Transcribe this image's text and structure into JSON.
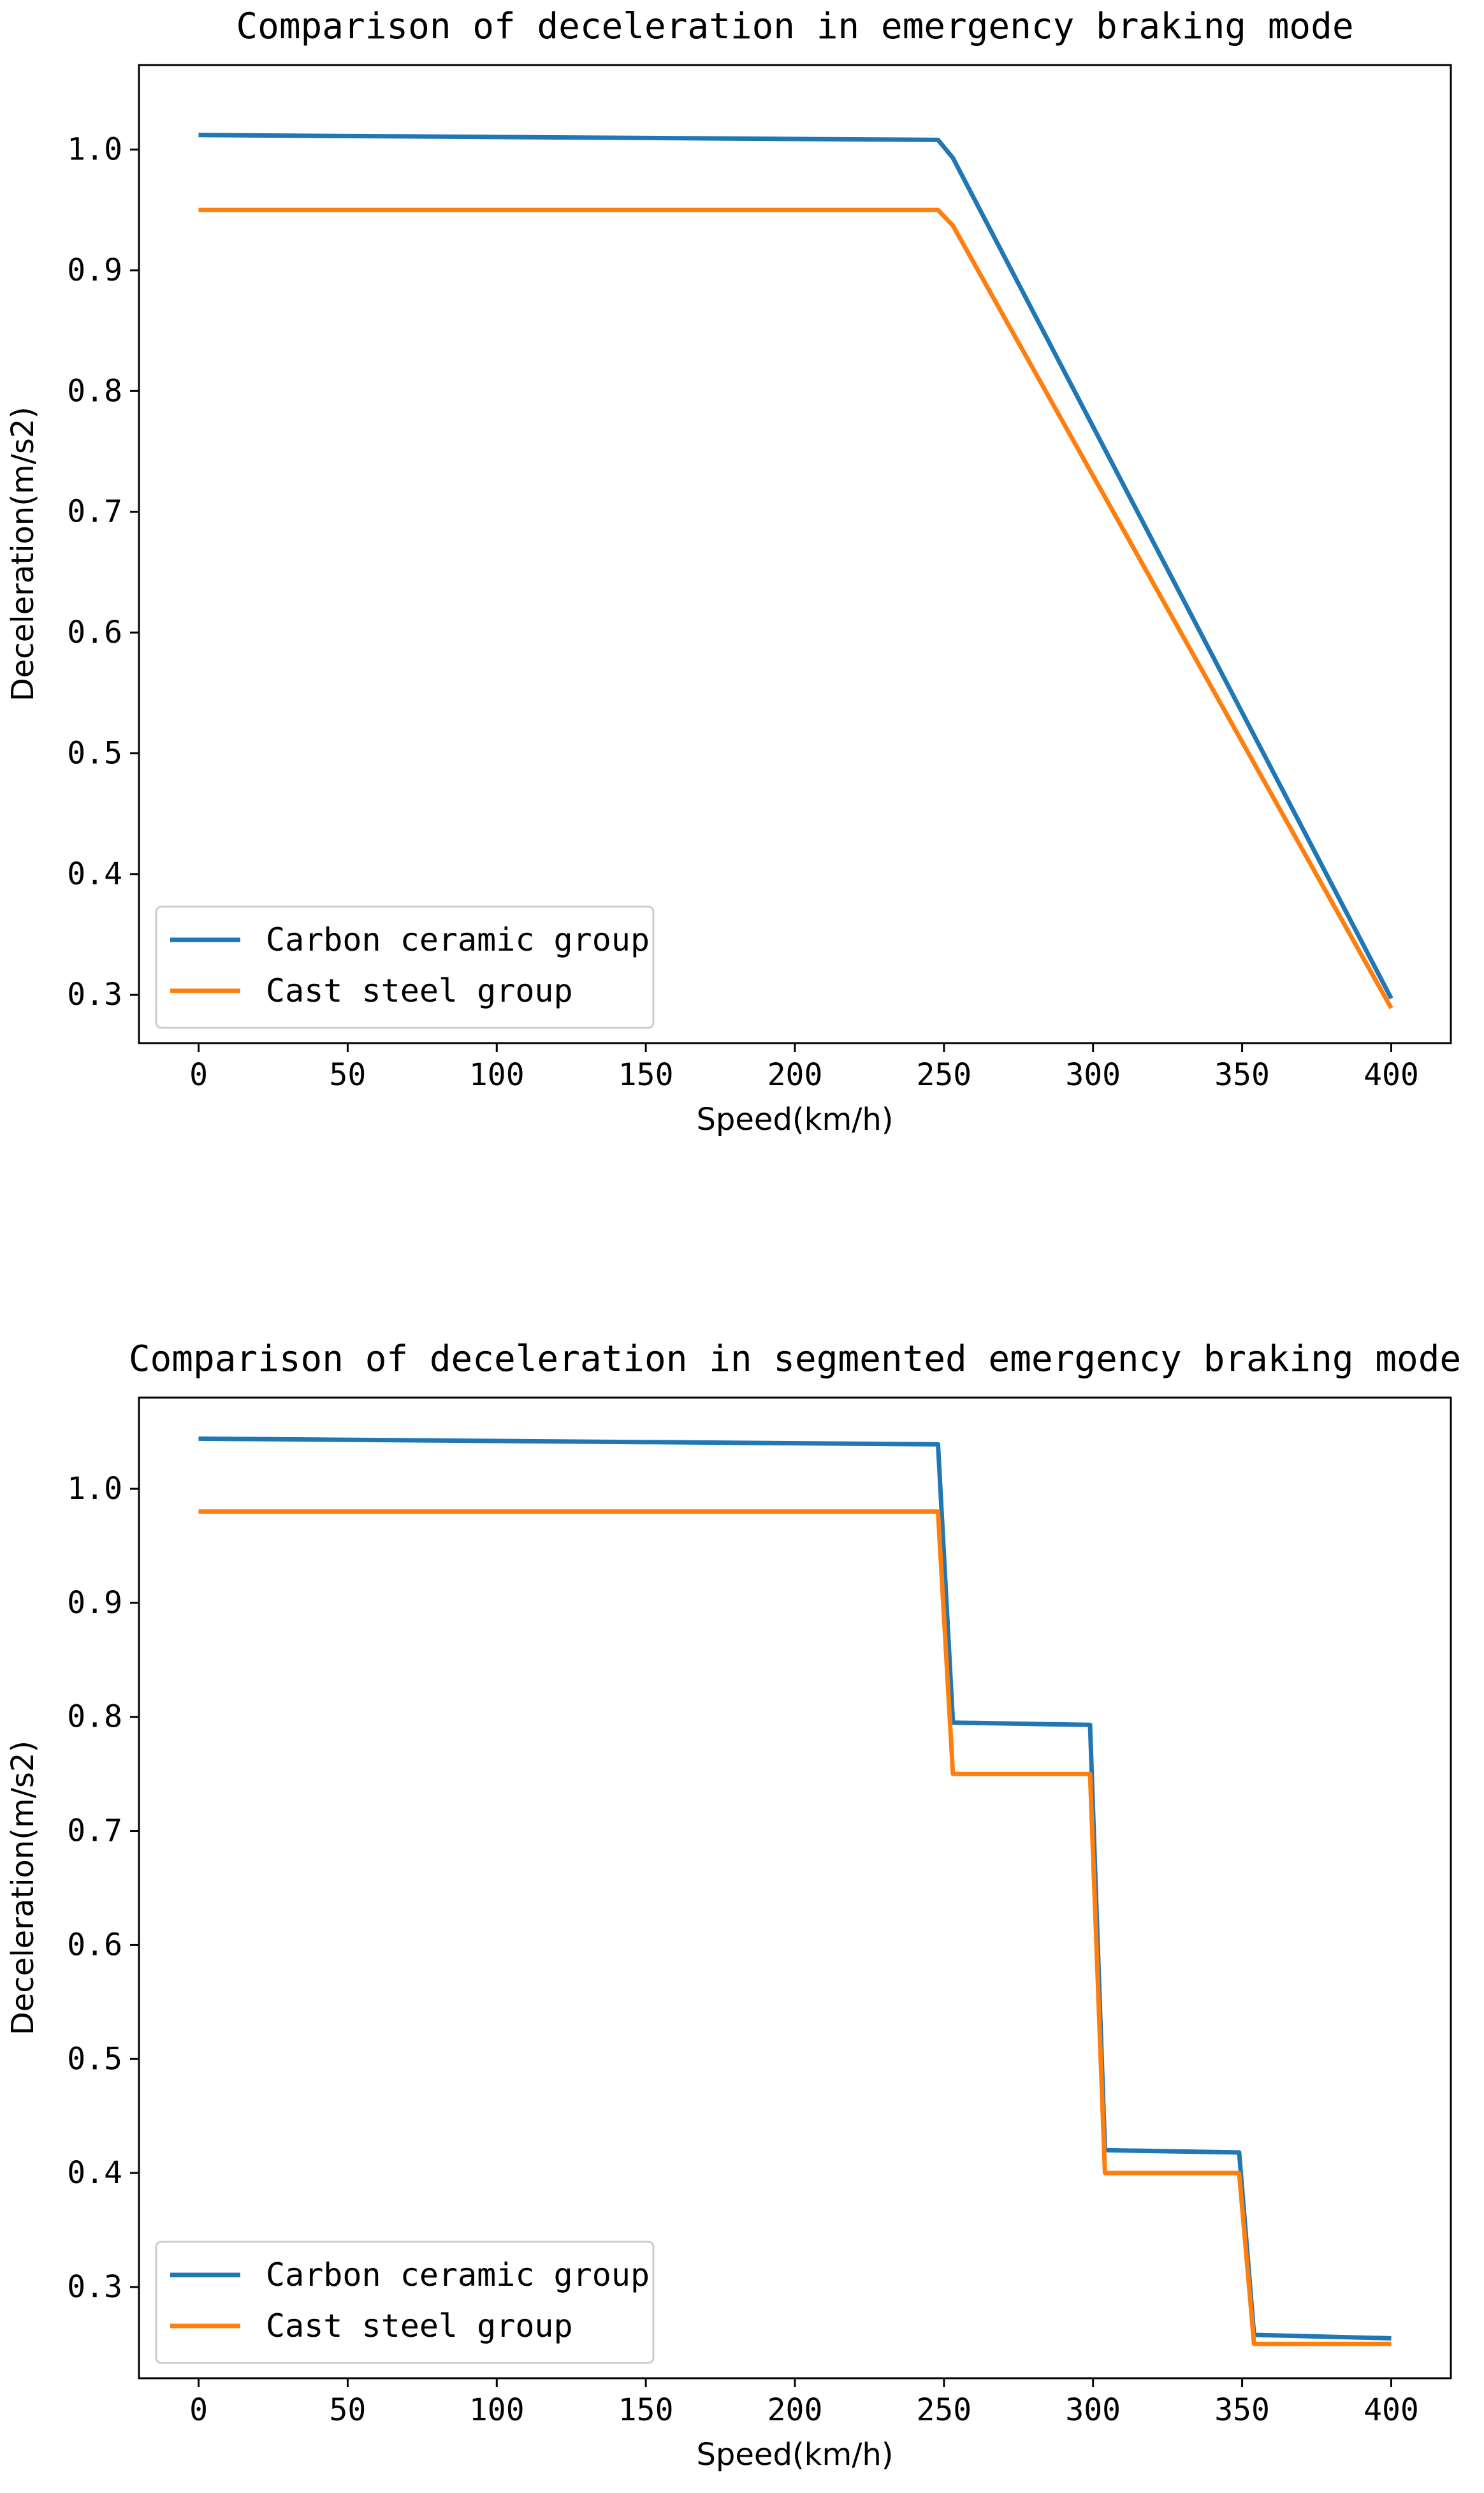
{
  "chart_data": [
    {
      "type": "line",
      "title": "Comparison of deceleration in emergency braking mode",
      "xlabel": "Speed(km/h)",
      "ylabel": "Deceleration(m/s2)",
      "xlim": [
        -20,
        420
      ],
      "ylim": [
        0.26,
        1.07
      ],
      "xticks": [
        0,
        50,
        100,
        150,
        200,
        250,
        300,
        350,
        400
      ],
      "yticks": [
        0.3,
        0.4,
        0.5,
        0.6,
        0.7,
        0.8,
        0.9,
        1.0
      ],
      "legend_position": "lower-left",
      "series": [
        {
          "name": "Carbon ceramic group",
          "color": "#1f77b4",
          "x": [
            0,
            248,
            253,
            400
          ],
          "y": [
            1.012,
            1.008,
            0.993,
            0.297
          ]
        },
        {
          "name": "Cast steel group",
          "color": "#ff7f0e",
          "x": [
            0,
            248,
            253,
            400
          ],
          "y": [
            0.95,
            0.95,
            0.937,
            0.289
          ]
        }
      ]
    },
    {
      "type": "line",
      "title": "Comparison of deceleration in segmented emergency braking mode",
      "xlabel": "Speed(km/h)",
      "ylabel": "Deceleration(m/s2)",
      "xlim": [
        -20,
        420
      ],
      "ylim": [
        0.22,
        1.08
      ],
      "xticks": [
        0,
        50,
        100,
        150,
        200,
        250,
        300,
        350,
        400
      ],
      "yticks": [
        0.3,
        0.4,
        0.5,
        0.6,
        0.7,
        0.8,
        0.9,
        1.0
      ],
      "legend_position": "lower-left",
      "series": [
        {
          "name": "Carbon ceramic group",
          "color": "#1f77b4",
          "x": [
            0,
            248,
            253,
            299,
            304,
            349,
            354,
            400
          ],
          "y": [
            1.044,
            1.039,
            0.795,
            0.793,
            0.42,
            0.418,
            0.258,
            0.255
          ]
        },
        {
          "name": "Cast steel group",
          "color": "#ff7f0e",
          "x": [
            0,
            248,
            253,
            299,
            304,
            349,
            354,
            400
          ],
          "y": [
            0.98,
            0.98,
            0.75,
            0.75,
            0.4,
            0.4,
            0.25,
            0.25
          ]
        }
      ]
    }
  ]
}
